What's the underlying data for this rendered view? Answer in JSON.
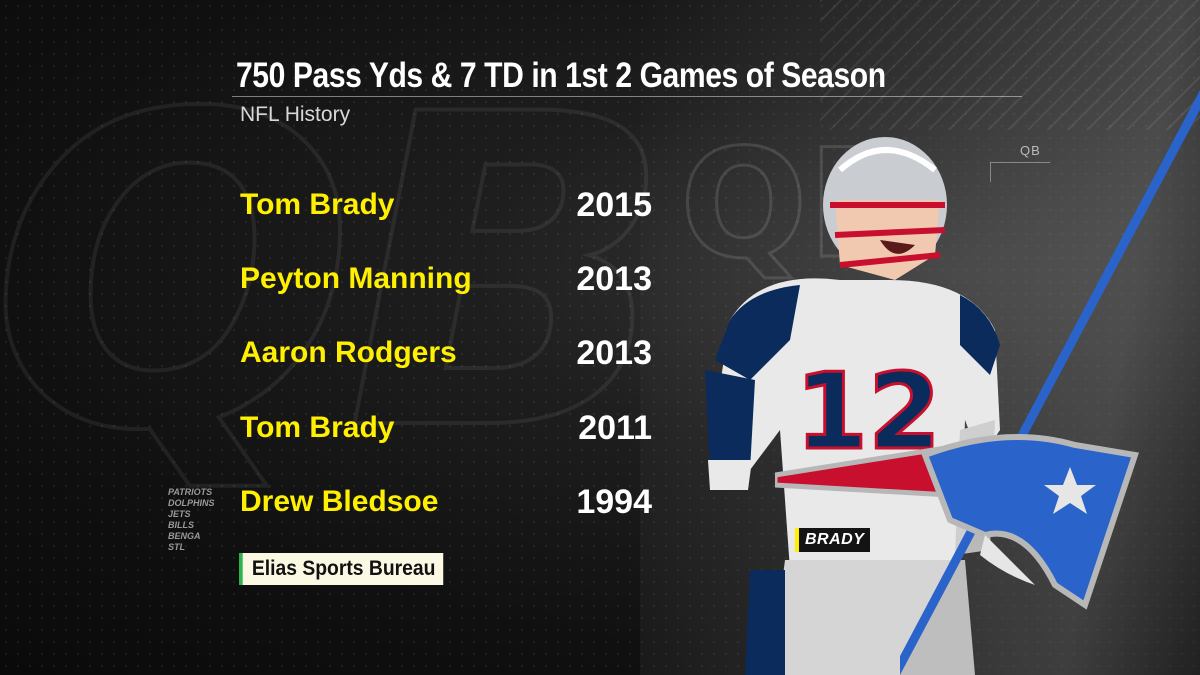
{
  "graphic": {
    "title": "750 Pass Yds & 7 TD in 1st 2 Games of Season",
    "subtitle": "NFL History",
    "background_text": "QB",
    "side_label": "QB",
    "rows": [
      {
        "name": "Tom Brady",
        "year": "2015"
      },
      {
        "name": "Peyton Manning",
        "year": "2013"
      },
      {
        "name": "Aaron Rodgers",
        "year": "2013"
      },
      {
        "name": "Tom Brady",
        "year": "2011"
      },
      {
        "name": "Drew Bledsoe",
        "year": "1994"
      }
    ],
    "team_list": [
      "PATRIOTS",
      "DOLPHINS",
      "JETS",
      "BILLS",
      "BENGA",
      "STL"
    ],
    "source": "Elias Sports Bureau",
    "player_tag": "BRADY",
    "jersey_number": "12",
    "colors": {
      "name_yellow": "#ffef00",
      "accent_green": "#2fb24a",
      "patriots_navy": "#0b2b5c",
      "patriots_red": "#c8102e",
      "slash_blue": "#2a63c9"
    }
  }
}
